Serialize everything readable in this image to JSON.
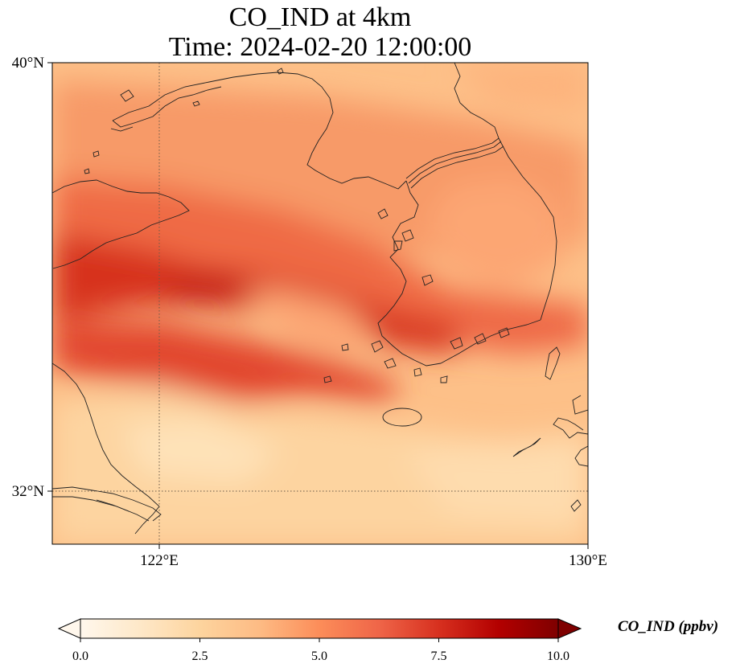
{
  "title": {
    "line1": "CO_IND at 4km",
    "line2": "Time: 2024-02-20 12:00:00"
  },
  "axes": {
    "lat_ticks": [
      {
        "label": "40°N",
        "value": 40
      },
      {
        "label": "32°N",
        "value": 32
      }
    ],
    "lon_ticks": [
      {
        "label": "122°E",
        "value": 122
      },
      {
        "label": "130°E",
        "value": 130
      }
    ],
    "lon_range": [
      120,
      130
    ],
    "lat_range": [
      31,
      40
    ],
    "gridlines": "dotted at 122°E and 32°N"
  },
  "colorbar": {
    "label": "CO_IND (ppbv)",
    "ticks": [
      "0.0",
      "2.5",
      "5.0",
      "7.5",
      "10.0"
    ],
    "range": [
      0,
      10
    ],
    "colormap": "OrRd",
    "extend": "both",
    "colors": [
      "#fff7ec",
      "#fee8c8",
      "#fdd49e",
      "#fdbb84",
      "#fc8d59",
      "#ef6548",
      "#d7301f",
      "#b30000",
      "#7f0000"
    ]
  },
  "map": {
    "variable": "CO_IND",
    "level": "4km",
    "region": "Yellow Sea, Korean Peninsula, eastern China",
    "background_color": "#fdc088"
  }
}
